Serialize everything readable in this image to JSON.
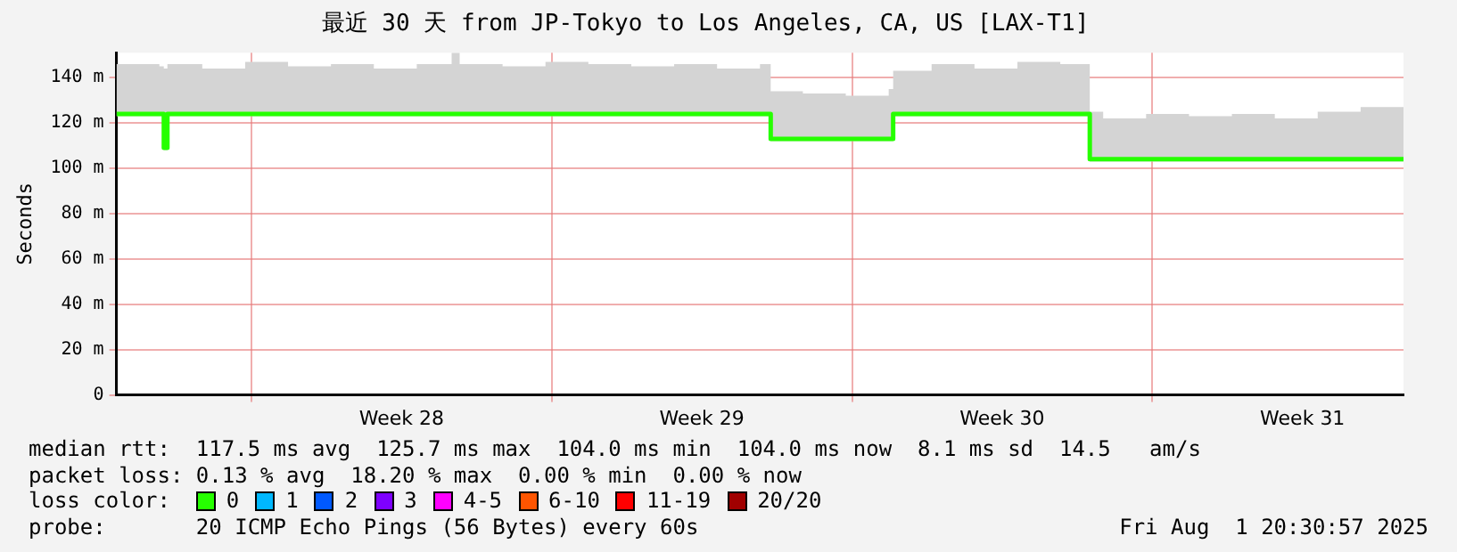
{
  "chart_data": {
    "type": "step",
    "title": "最近 30 天 from JP-Tokyo to Los Angeles, CA, US [LAX-T1]",
    "ylabel": "Seconds",
    "x": [
      "2025-07-02T20:30",
      "2025-07-03T20:30",
      "2025-07-03T23:00",
      "2025-07-04T01:00",
      "2025-07-04T20:30",
      "2025-07-05T20:30",
      "2025-07-06T20:30",
      "2025-07-07T20:30",
      "2025-07-08T20:30",
      "2025-07-09T20:30",
      "2025-07-10T16:00",
      "2025-07-10T20:30",
      "2025-07-11T20:30",
      "2025-07-12T20:30",
      "2025-07-13T20:30",
      "2025-07-14T20:30",
      "2025-07-15T20:30",
      "2025-07-16T20:30",
      "2025-07-17T20:30",
      "2025-07-18T02:30",
      "2025-07-18T20:30",
      "2025-07-19T20:30",
      "2025-07-20T20:30",
      "2025-07-20T23:00",
      "2025-07-21T20:30",
      "2025-07-22T20:30",
      "2025-07-23T20:30",
      "2025-07-24T20:30",
      "2025-07-25T13:00",
      "2025-07-25T20:30",
      "2025-07-26T20:30",
      "2025-07-27T20:30",
      "2025-07-28T20:30",
      "2025-07-29T20:30",
      "2025-07-30T20:30",
      "2025-07-31T20:30",
      "2025-08-01T20:30"
    ],
    "series": [
      {
        "name": "0",
        "color": "#26ff00",
        "values": [
          124,
          124,
          109,
          124,
          124,
          124,
          124,
          124,
          124,
          124,
          124,
          124,
          124,
          124,
          124,
          124,
          124,
          124,
          124,
          113,
          113,
          113,
          113,
          124,
          124,
          124,
          124,
          124,
          104,
          104,
          104,
          104,
          104,
          104,
          104,
          104,
          104
        ],
        "lower": [
          123,
          123,
          108,
          123,
          123,
          123,
          123,
          123,
          123,
          123,
          123,
          123,
          123,
          123,
          123,
          123,
          123,
          123,
          123,
          112,
          112,
          112,
          112,
          123,
          123,
          123,
          123,
          123,
          103,
          103,
          103,
          103,
          103,
          103,
          103,
          103,
          103
        ],
        "upper": [
          146,
          145,
          144,
          146,
          144,
          147,
          145,
          146,
          144,
          146,
          151,
          146,
          145,
          147,
          146,
          145,
          146,
          144,
          146,
          134,
          133,
          132,
          135,
          143,
          146,
          144,
          147,
          146,
          125,
          122,
          124,
          123,
          124,
          122,
          125,
          127,
          124
        ]
      },
      {
        "name": "1",
        "color": "#00b8ff",
        "values": [
          null,
          null,
          null,
          null,
          null,
          null,
          null,
          null,
          null,
          null,
          null,
          null,
          null,
          null,
          null,
          null,
          null,
          null,
          null,
          null,
          null,
          null,
          null,
          null,
          null,
          null,
          null,
          null,
          null,
          null,
          null,
          null,
          null,
          null,
          null,
          null,
          null
        ]
      },
      {
        "name": "2",
        "color": "#0059ff",
        "values": [
          null,
          null,
          null,
          null,
          null,
          null,
          null,
          null,
          null,
          null,
          null,
          null,
          null,
          null,
          null,
          null,
          null,
          null,
          null,
          null,
          null,
          null,
          null,
          null,
          null,
          null,
          null,
          null,
          null,
          null,
          null,
          null,
          null,
          null,
          null,
          null,
          null
        ]
      },
      {
        "name": "3",
        "color": "#7e00ff",
        "values": [
          null,
          null,
          null,
          null,
          null,
          null,
          null,
          null,
          null,
          null,
          null,
          null,
          null,
          null,
          null,
          null,
          null,
          null,
          null,
          null,
          null,
          null,
          null,
          null,
          null,
          null,
          null,
          null,
          null,
          null,
          null,
          null,
          null,
          null,
          null,
          null,
          null
        ]
      },
      {
        "name": "4-5",
        "color": "#ff00ff",
        "values": [
          null,
          null,
          null,
          null,
          null,
          null,
          null,
          null,
          null,
          null,
          null,
          null,
          null,
          null,
          null,
          null,
          null,
          null,
          null,
          null,
          null,
          null,
          null,
          null,
          null,
          null,
          null,
          null,
          null,
          null,
          null,
          null,
          null,
          null,
          null,
          null,
          null
        ]
      },
      {
        "name": "6-10",
        "color": "#ff5500",
        "values": [
          null,
          null,
          null,
          null,
          null,
          null,
          null,
          null,
          null,
          null,
          null,
          null,
          null,
          null,
          null,
          null,
          null,
          null,
          null,
          null,
          null,
          null,
          null,
          null,
          null,
          null,
          null,
          null,
          null,
          null,
          null,
          null,
          null,
          null,
          null,
          null,
          null
        ]
      },
      {
        "name": "11-19",
        "color": "#ff0000",
        "values": [
          null,
          null,
          null,
          null,
          null,
          null,
          null,
          null,
          null,
          null,
          null,
          null,
          null,
          null,
          null,
          null,
          null,
          null,
          null,
          null,
          null,
          null,
          null,
          null,
          null,
          null,
          null,
          null,
          null,
          null,
          null,
          null,
          null,
          null,
          null,
          null,
          null
        ]
      },
      {
        "name": "20/20",
        "color": "#a10000",
        "values": [
          null,
          null,
          null,
          null,
          null,
          null,
          null,
          null,
          null,
          null,
          null,
          null,
          null,
          null,
          null,
          null,
          null,
          null,
          null,
          null,
          null,
          null,
          null,
          null,
          null,
          null,
          null,
          null,
          null,
          null,
          null,
          null,
          null,
          null,
          null,
          null,
          null
        ]
      }
    ],
    "legend_title": "loss color:",
    "legend": "bottom left",
    "xlim": [
      "2025-07-02T20:30",
      "2025-08-01T20:30"
    ],
    "xticks": [
      {
        "value": "2025-07-06",
        "label": null
      },
      {
        "value": "2025-07-09T12:00",
        "label": "Week 28"
      },
      {
        "value": "2025-07-13",
        "label": null
      },
      {
        "value": "2025-07-16T12:00",
        "label": "Week 29"
      },
      {
        "value": "2025-07-20",
        "label": null
      },
      {
        "value": "2025-07-23T12:00",
        "label": "Week 30"
      },
      {
        "value": "2025-07-27",
        "label": null
      },
      {
        "value": "2025-07-30T12:00",
        "label": "Week 31"
      }
    ],
    "ylim": [
      0,
      151
    ],
    "yticks": [
      {
        "value": 0,
        "label": "0"
      },
      {
        "value": 20,
        "label": "20 m"
      },
      {
        "value": 40,
        "label": "40 m"
      },
      {
        "value": 60,
        "label": "60 m"
      },
      {
        "value": 80,
        "label": "80 m"
      },
      {
        "value": 100,
        "label": "100 m"
      },
      {
        "value": 120,
        "label": "120 m"
      },
      {
        "value": 140,
        "label": "140 m"
      }
    ],
    "grid": true,
    "annotations": [
      "median rtt:  117.5 ms avg  125.7 ms max  104.0 ms min  104.0 ms now  8.1 ms sd  14.5   am/s",
      "packet loss: 0.13 % avg  18.20 % max  0.00 % min  0.00 % now",
      "probe:       20 ICMP Echo Pings (56 Bytes) every 60s",
      "Fri Aug  1 20:30:57 2025"
    ]
  }
}
